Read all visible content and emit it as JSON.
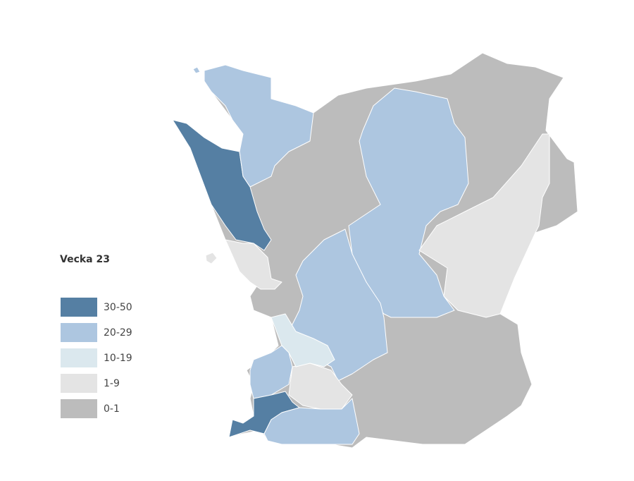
{
  "legend": {
    "title": "Vecka 23",
    "items": [
      {
        "label": "30-50",
        "color": "#557fa3"
      },
      {
        "label": "20-29",
        "color": "#adc6e0"
      },
      {
        "label": "10-19",
        "color": "#dbe8ee"
      },
      {
        "label": "1-9",
        "color": "#e4e4e4"
      },
      {
        "label": "0-1",
        "color": "#bcbcbc"
      }
    ]
  }
}
